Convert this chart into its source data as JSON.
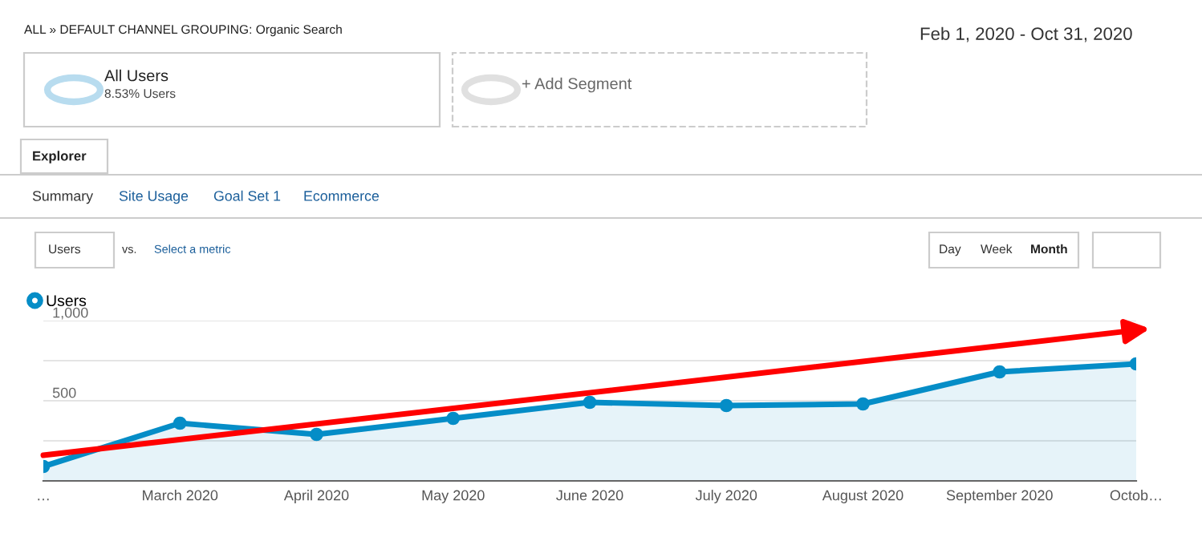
{
  "chart_data": {
    "type": "area",
    "categories": [
      "…",
      "March 2020",
      "April 2020",
      "May 2020",
      "June 2020",
      "July 2020",
      "August 2020",
      "September 2020",
      "Octob…"
    ],
    "series": [
      {
        "name": "Users",
        "color": "#058dc7",
        "values": [
          90,
          360,
          290,
          390,
          490,
          470,
          480,
          680,
          730
        ]
      }
    ],
    "ylim": [
      0,
      1000
    ],
    "yticks": [
      {
        "value": 0,
        "label": null
      },
      {
        "value": 250,
        "label": null
      },
      500,
      {
        "value": 750,
        "label": null
      },
      {
        "value": 1000,
        "label": "1,000"
      }
    ],
    "grid": "y",
    "legend": "top left",
    "marker": "circle",
    "line_style": "solid",
    "annotations": [
      "ALL » DEFAULT CHANNEL GROUPING: Organic Search",
      "Feb 1, 2020 - Oct 31, 2020",
      "All Users",
      "8.53% Users",
      "+ Add Segment",
      "Explorer",
      "Summary",
      "Site Usage",
      "Goal Set 1",
      "Ecommerce",
      "Users",
      "vs.",
      "Select a metric",
      "Day",
      "Week",
      "Month"
    ]
  }
}
